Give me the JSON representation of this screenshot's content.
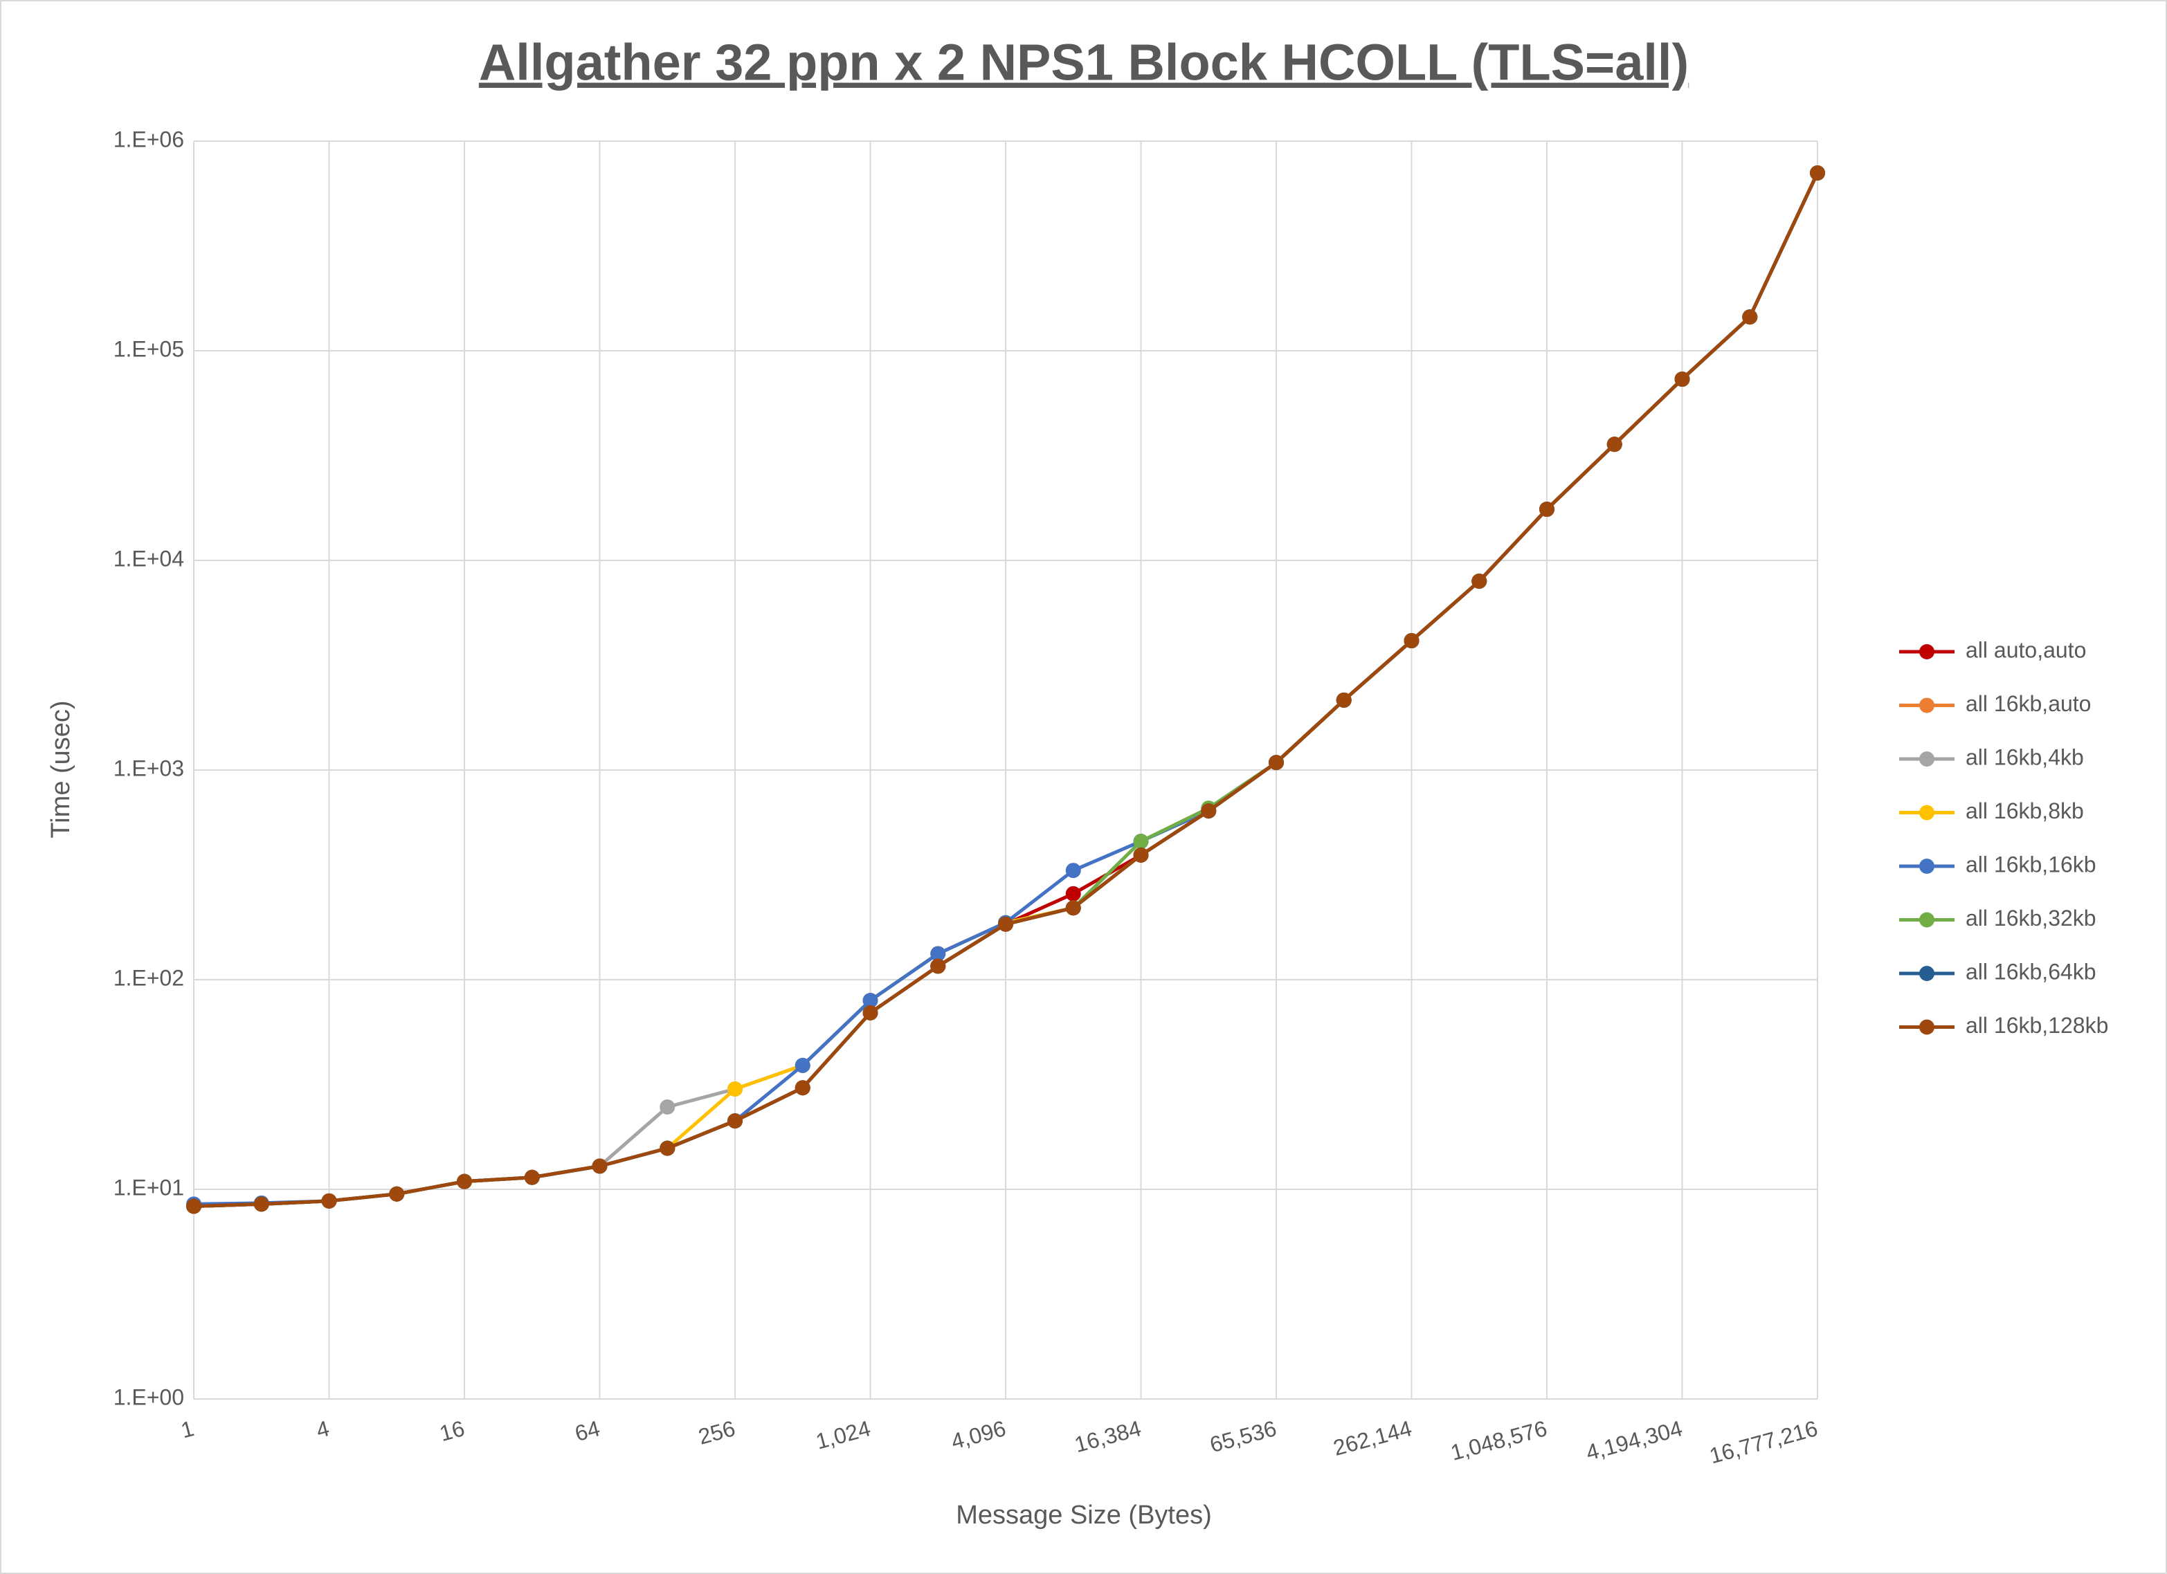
{
  "chart_data": {
    "type": "line",
    "title": "Allgather 32 ppn x 2 NPS1 Block HCOLL (TLS=all)",
    "x_label": "Message Size (Bytes)",
    "y_label": "Time (usec)",
    "x_log_base": 2,
    "y_log_base": 10,
    "x": [
      1,
      2,
      4,
      8,
      16,
      32,
      64,
      128,
      256,
      512,
      1024,
      2048,
      4096,
      8192,
      16384,
      32768,
      65536,
      131072,
      262144,
      524288,
      1048576,
      2097152,
      4194304,
      8388608,
      16777216
    ],
    "xlim": [
      1,
      16777216
    ],
    "xticks": [
      1,
      4,
      16,
      64,
      256,
      {
        "value": 1024,
        "label": "1,024"
      },
      {
        "value": 4096,
        "label": "4,096"
      },
      {
        "value": 16384,
        "label": "16,384"
      },
      {
        "value": 65536,
        "label": "65,536"
      },
      {
        "value": 262144,
        "label": "262,144"
      },
      {
        "value": 1048576,
        "label": "1,048,576"
      },
      {
        "value": 4194304,
        "label": "4,194,304"
      },
      {
        "value": 16777216,
        "label": "16,777,216"
      }
    ],
    "ylim": [
      1,
      1000000
    ],
    "yticks": [
      {
        "value": 1,
        "label": "1.E+00"
      },
      {
        "value": 10,
        "label": "1.E+01"
      },
      {
        "value": 100,
        "label": "1.E+02"
      },
      {
        "value": 1000,
        "label": "1.E+03"
      },
      {
        "value": 10000,
        "label": "1.E+04"
      },
      {
        "value": 100000,
        "label": "1.E+05"
      },
      {
        "value": 1000000,
        "label": "1.E+06"
      }
    ],
    "grid": true,
    "legend": "right",
    "series": [
      {
        "name": "all auto,auto",
        "color": "#c00000",
        "values": [
          8.3,
          8.5,
          8.8,
          9.5,
          10.9,
          11.4,
          12.9,
          15.7,
          21.2,
          30.5,
          69.5,
          116,
          184,
          257,
          393,
          638,
          1086,
          2155,
          4140,
          7960,
          17540,
          35800,
          73200,
          145000,
          705000
        ]
      },
      {
        "name": "all 16kb,auto",
        "color": "#ed7d31",
        "values": [
          8.3,
          8.5,
          8.8,
          9.5,
          10.9,
          11.4,
          12.9,
          15.7,
          21.2,
          30.5,
          69.5,
          116,
          184,
          220,
          393,
          638,
          1086,
          2155,
          4140,
          7960,
          17540,
          35800,
          73200,
          145000,
          705000
        ]
      },
      {
        "name": "all 16kb,4kb",
        "color": "#a5a5a5",
        "values": [
          8.3,
          8.5,
          8.8,
          9.5,
          10.9,
          11.4,
          12.9,
          24.7,
          30.1,
          39,
          79.6,
          133,
          187,
          220,
          393,
          638,
          1086,
          2155,
          4140,
          7960,
          17540,
          35800,
          73200,
          145000,
          705000
        ]
      },
      {
        "name": "all 16kb,8kb",
        "color": "#ffc000",
        "values": [
          8.3,
          8.5,
          8.8,
          9.5,
          10.9,
          11.4,
          12.9,
          15.7,
          30.1,
          39,
          79.6,
          133,
          187,
          220,
          393,
          638,
          1086,
          2155,
          4140,
          7960,
          17540,
          35800,
          73200,
          145000,
          705000
        ]
      },
      {
        "name": "all 16kb,16kb",
        "color": "#4472c4",
        "values": [
          8.5,
          8.6,
          8.8,
          9.5,
          10.9,
          11.4,
          12.9,
          15.7,
          21.2,
          39,
          79.6,
          133,
          187,
          332,
          457,
          638,
          1086,
          2155,
          4140,
          7960,
          17540,
          35800,
          73200,
          145000,
          705000
        ]
      },
      {
        "name": "all 16kb,32kb",
        "color": "#70ad47",
        "values": [
          8.3,
          8.5,
          8.8,
          9.5,
          10.9,
          11.4,
          12.9,
          15.7,
          21.2,
          30.5,
          69.5,
          116,
          184,
          220,
          457,
          658,
          1086,
          2155,
          4140,
          7960,
          17540,
          35800,
          73200,
          145000,
          705000
        ]
      },
      {
        "name": "all 16kb,64kb",
        "color": "#255e91",
        "values": [
          8.3,
          8.5,
          8.8,
          9.5,
          10.9,
          11.4,
          12.9,
          15.7,
          21.2,
          30.5,
          69.5,
          116,
          184,
          220,
          393,
          638,
          1086,
          2155,
          4140,
          7960,
          17540,
          35800,
          73200,
          145000,
          705000
        ]
      },
      {
        "name": "all 16kb,128kb",
        "color": "#9e480e",
        "values": [
          8.3,
          8.5,
          8.8,
          9.5,
          10.9,
          11.4,
          12.9,
          15.7,
          21.2,
          30.5,
          69.5,
          116,
          184,
          220,
          393,
          638,
          1086,
          2155,
          4140,
          7960,
          17540,
          35800,
          73200,
          145000,
          705000
        ]
      }
    ]
  }
}
